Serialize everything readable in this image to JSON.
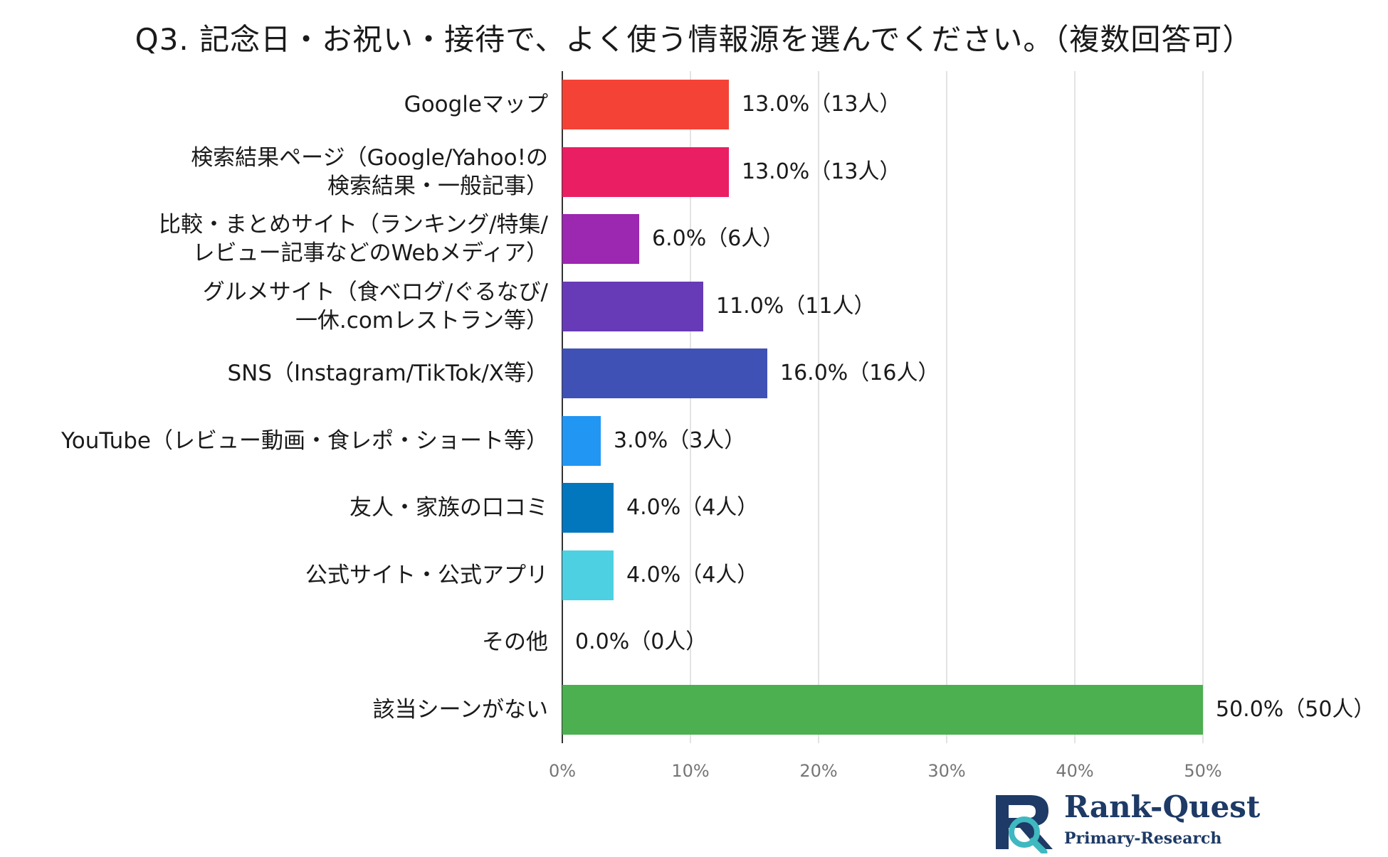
{
  "chart_data": {
    "type": "bar",
    "orientation": "horizontal",
    "title": "Q3. 記念日・お祝い・接待で、よく使う情報源を選んでください。（複数回答可）",
    "categories": [
      "Googleマップ",
      "検索結果ページ（Google/Yahoo!の\n検索結果・一般記事）",
      "比較・まとめサイト（ランキング/特集/\nレビュー記事などのWebメディア）",
      "グルメサイト（食べログ/ぐるなび/\n一休.comレストラン等）",
      "SNS（Instagram/TikTok/X等）",
      "YouTube（レビュー動画・食レポ・ショート等）",
      "友人・家族の口コミ",
      "公式サイト・公式アプリ",
      "その他",
      "該当シーンがない"
    ],
    "values": [
      13.0,
      13.0,
      6.0,
      11.0,
      16.0,
      3.0,
      4.0,
      4.0,
      0.0,
      50.0
    ],
    "value_labels": [
      "13.0%（13人）",
      "13.0%（13人）",
      "6.0%（6人）",
      "11.0%（11人）",
      "16.0%（16人）",
      "3.0%（3人）",
      "4.0%（4人）",
      "4.0%（4人）",
      "0.0%（0人）",
      "50.0%（50人）"
    ],
    "colors": [
      "#f44336",
      "#e91e63",
      "#9c27b0",
      "#673ab7",
      "#3f51b5",
      "#2196f3",
      "#0277bd",
      "#4dd0e1",
      "#cccccc",
      "#4caf50"
    ],
    "x_ticks": [
      "0%",
      "10%",
      "20%",
      "30%",
      "40%",
      "50%"
    ],
    "xlim": [
      0,
      50
    ],
    "grid": true,
    "legend": "none"
  },
  "logo": {
    "brand": "Rank-Quest",
    "sub": "Primary-Research",
    "colors": {
      "navy": "#1e3a66",
      "teal": "#3fb8c0"
    }
  }
}
